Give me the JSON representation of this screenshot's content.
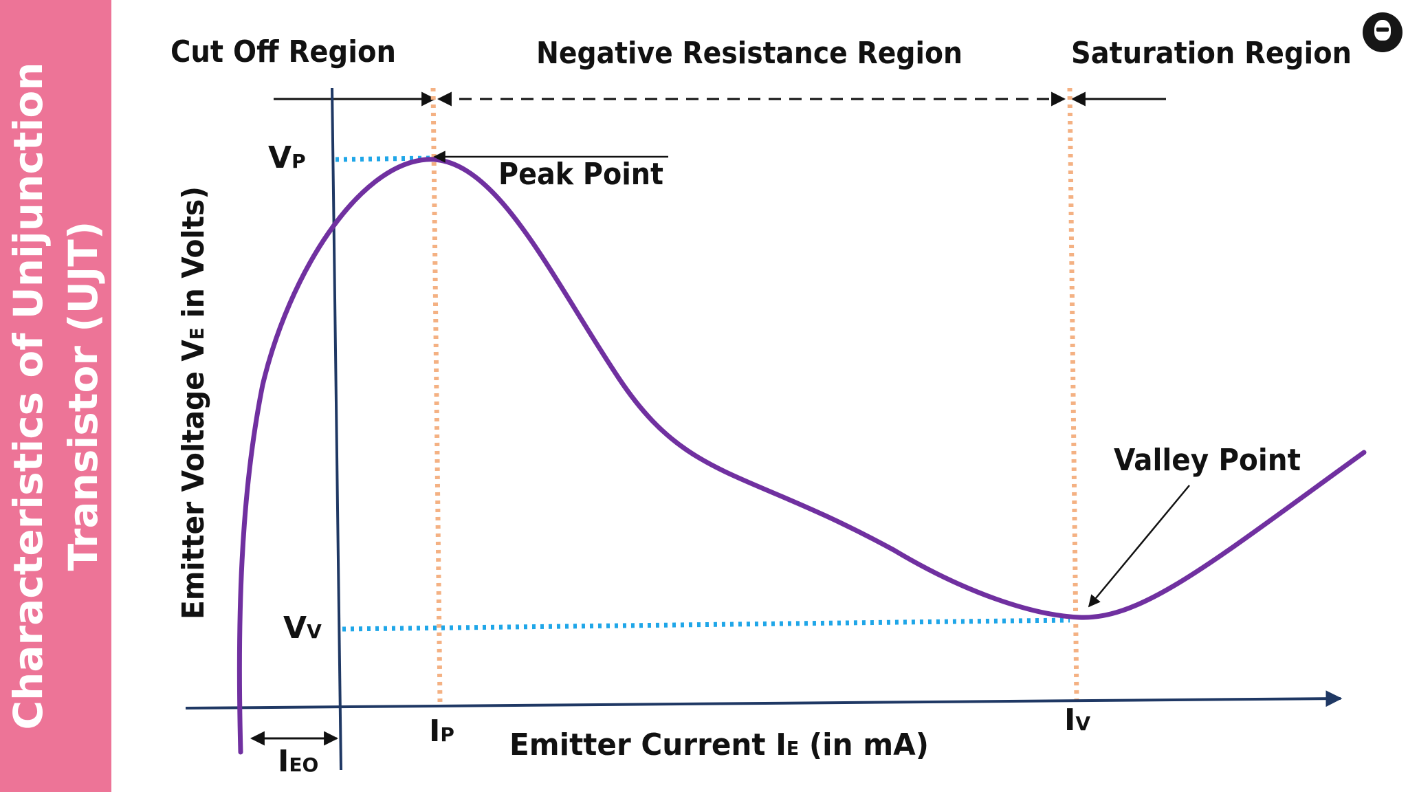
{
  "sidebar": {
    "title_line1": "Characteristics of Unijunction",
    "title_line2": "Transistor (UJT)"
  },
  "regions": {
    "cut_off": "Cut Off Region",
    "negative_resistance": "Negative Resistance Region",
    "saturation": "Saturation Region"
  },
  "annotations": {
    "peak_point": "Peak Point",
    "valley_point": "Valley Point"
  },
  "axes": {
    "y_label_pre": "Emitter Voltage V",
    "y_label_sub": "E",
    "y_label_post": " in  Volts)",
    "x_label_pre": "Emitter Current I",
    "x_label_sub": "E",
    "x_label_post": "  (in  mA)"
  },
  "markers": {
    "vp_main": "V",
    "vp_sub": "P",
    "vv_main": "V",
    "vv_sub": "V",
    "ip_main": "I",
    "ip_sub": "P",
    "iv_main": "I",
    "iv_sub": "V",
    "ieo_main": "I",
    "ieo_sub": "EO"
  },
  "colors": {
    "sidebar": "#ed7497",
    "curve": "#7030a0",
    "blue_dotted": "#1fa6e8",
    "orange_dotted": "#f4b183",
    "axis": "#1f3864"
  }
}
